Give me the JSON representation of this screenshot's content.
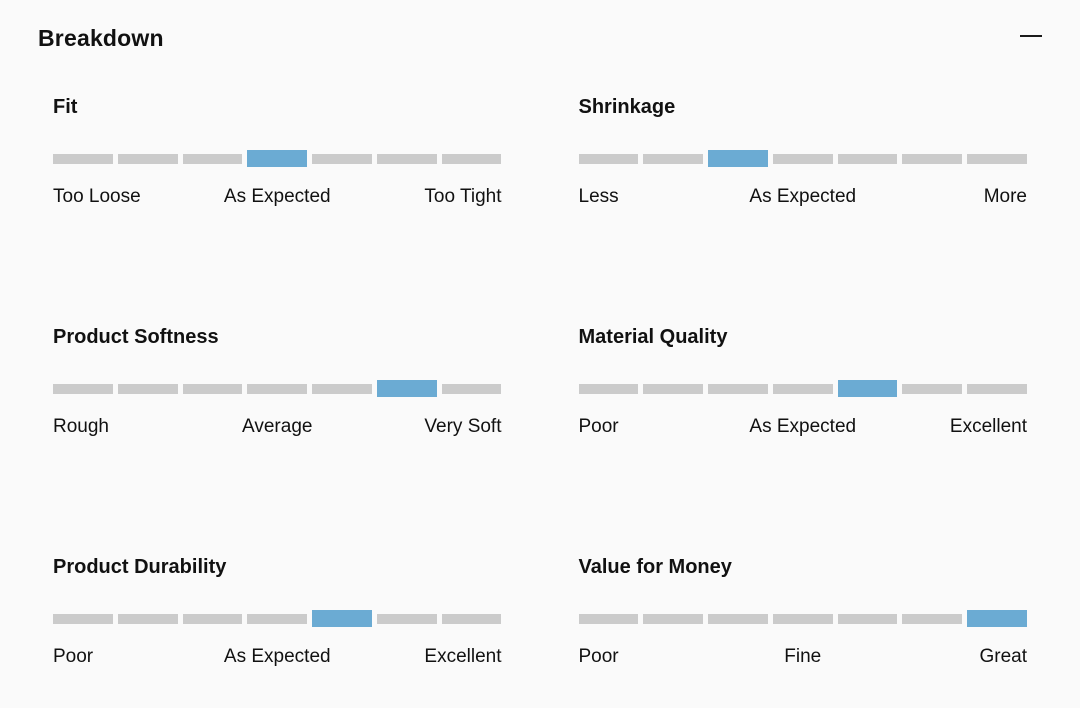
{
  "header": {
    "title": "Breakdown",
    "collapse_icon": "minus-icon"
  },
  "colors": {
    "active_segment": "#6babd3",
    "track_segment": "#cbcbcb",
    "background": "#fafafa",
    "text": "#111111"
  },
  "scale": {
    "segments_total": 7
  },
  "sections": [
    {
      "title": "Fit",
      "active_index": 4,
      "labels": [
        "Too Loose",
        "As Expected",
        "Too Tight"
      ]
    },
    {
      "title": "Shrinkage",
      "active_index": 3,
      "labels": [
        "Less",
        "As Expected",
        "More"
      ]
    },
    {
      "title": "Product Softness",
      "active_index": 6,
      "labels": [
        "Rough",
        "Average",
        "Very Soft"
      ]
    },
    {
      "title": "Material Quality",
      "active_index": 5,
      "labels": [
        "Poor",
        "As Expected",
        "Excellent"
      ]
    },
    {
      "title": "Product Durability",
      "active_index": 5,
      "labels": [
        "Poor",
        "As Expected",
        "Excellent"
      ]
    },
    {
      "title": "Value for Money",
      "active_index": 7,
      "labels": [
        "Poor",
        "Fine",
        "Great"
      ]
    }
  ]
}
